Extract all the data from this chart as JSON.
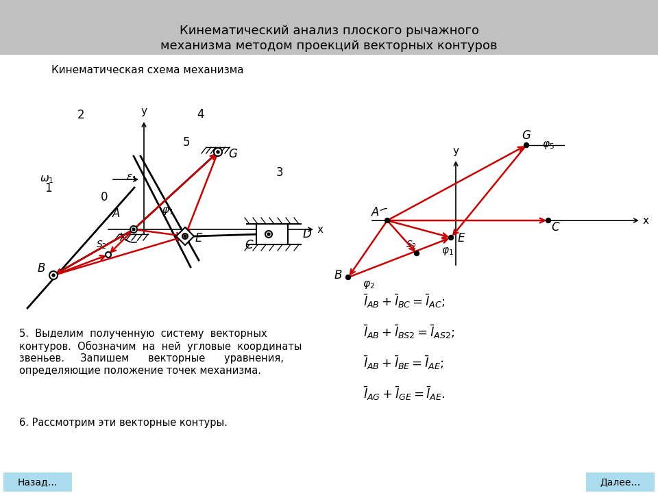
{
  "title_line1": "Кинематический анализ плоского рычажного",
  "title_line2": "механизма методом проекций векторных контуров",
  "title_bg": "#c0c0c0",
  "subtitle": "Кинематическая схема механизма",
  "bg_color": "#ffffff",
  "btn_left": "Назад…",
  "btn_right": "Далее…",
  "btn_color": "#aadcee"
}
